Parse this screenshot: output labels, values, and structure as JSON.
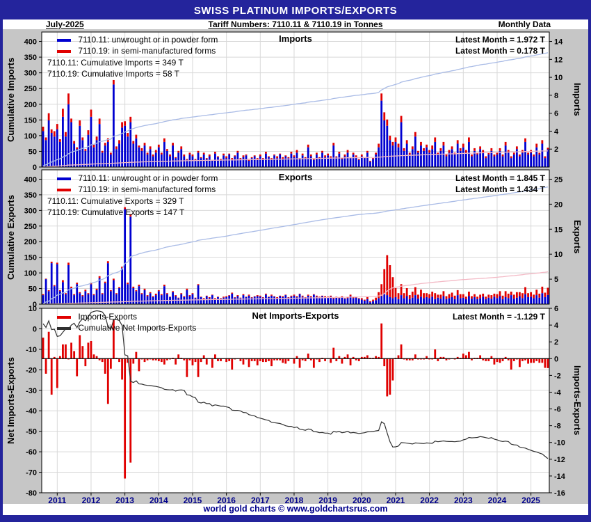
{
  "header": {
    "title": "SWISS PLATINUM IMPORTS/EXPORTS",
    "date_label": "July-2025",
    "tariff_label": "Tariff Numbers: 7110.11 & 7110.19 in Tonnes",
    "frequency_label": "Monthly Data"
  },
  "footer": {
    "credit": "world gold charts © www.goldchartsrus.com"
  },
  "colors": {
    "navy": "#24249c",
    "bar_blue": "#0000d0",
    "bar_red": "#e00000",
    "cum_blue": "#a9bbe6",
    "cum_pink": "#f3b9c5",
    "net_line": "#303030",
    "chart_bg": "#c6c6c6",
    "grid": "#d8d8d8",
    "x_label": "#00008b"
  },
  "x": {
    "start_year": 2010,
    "start_month": 8,
    "months": 180,
    "year_ticks": [
      2011,
      2012,
      2013,
      2014,
      2015,
      2016,
      2017,
      2018,
      2019,
      2020,
      2021,
      2022,
      2023,
      2024,
      2025
    ]
  },
  "chart_data": [
    {
      "type": "bar",
      "stacked": true,
      "title": "Imports",
      "left_axis": {
        "label": "Cumulative Imports",
        "min": 0,
        "max": 430,
        "ticks": [
          0,
          50,
          100,
          150,
          200,
          250,
          300,
          350,
          400
        ]
      },
      "right_axis": {
        "label": "Imports",
        "min": 0,
        "max": 15.05,
        "ticks": [
          2,
          4,
          6,
          8,
          10,
          12,
          14
        ]
      },
      "series": [
        {
          "name": "7110.11: unwrought or in powder form",
          "color": "#0000d0",
          "values": [
            4.0,
            3.0,
            5.2,
            3.8,
            3.4,
            4.2,
            2.8,
            5.6,
            3.4,
            7.0,
            5.0,
            2.6,
            2.0,
            4.6,
            3.0,
            1.8,
            3.6,
            5.6,
            2.2,
            3.0,
            4.8,
            1.6,
            2.4,
            2.8,
            1.4,
            9.2,
            2.0,
            2.6,
            4.4,
            4.6,
            3.4,
            5.0,
            2.6,
            3.2,
            2.2,
            1.8,
            2.4,
            1.4,
            2.0,
            1.2,
            1.6,
            2.2,
            1.4,
            2.8,
            1.8,
            1.2,
            2.4,
            1.0,
            1.6,
            2.0,
            1.2,
            0.8,
            1.4,
            1.2,
            0.8,
            1.6,
            1.0,
            1.4,
            0.9,
            1.2,
            0.7,
            1.5,
            1.1,
            0.8,
            1.3,
            1.0,
            1.4,
            0.8,
            1.2,
            1.6,
            0.9,
            1.1,
            1.3,
            0.7,
            1.0,
            1.2,
            0.8,
            1.2,
            0.9,
            1.5,
            1.1,
            0.8,
            1.3,
            1.0,
            1.4,
            0.9,
            1.2,
            1.0,
            1.5,
            1.1,
            1.6,
            0.9,
            1.3,
            1.0,
            2.2,
            1.2,
            0.8,
            1.4,
            1.0,
            1.6,
            1.1,
            1.3,
            1.0,
            2.4,
            1.1,
            1.5,
            0.9,
            1.2,
            1.6,
            1.0,
            1.4,
            1.1,
            0.8,
            1.2,
            1.0,
            1.6,
            0.6,
            0.9,
            1.4,
            2.2,
            7.4,
            5.2,
            4.6,
            3.0,
            2.4,
            2.8,
            2.2,
            5.0,
            1.8,
            2.6,
            1.4,
            2.0,
            3.4,
            1.6,
            2.4,
            1.8,
            2.2,
            1.6,
            2.0,
            2.8,
            1.4,
            1.8,
            2.4,
            1.2,
            1.6,
            2.0,
            1.4,
            2.6,
            1.8,
            2.2,
            1.6,
            2.8,
            1.2,
            1.8,
            1.4,
            2.0,
            1.6,
            1.0,
            1.4,
            1.8,
            1.2,
            1.4,
            1.8,
            1.2,
            2.4,
            1.6,
            1.0,
            1.4,
            2.0,
            1.2,
            1.6,
            2.8,
            1.4,
            1.6,
            1.2,
            2.2,
            1.4,
            2.6,
            1.0,
            1.972
          ]
        },
        {
          "name": "7110.19: in semi-manufactured forms",
          "color": "#e00000",
          "values": [
            0.5,
            0.3,
            0.8,
            0.4,
            0.6,
            0.6,
            0.3,
            0.9,
            0.5,
            1.2,
            0.4,
            0.3,
            0.2,
            0.6,
            0.3,
            0.2,
            0.5,
            0.8,
            0.3,
            0.4,
            0.6,
            0.2,
            0.3,
            0.4,
            0.2,
            0.5,
            0.3,
            0.4,
            0.6,
            0.5,
            0.4,
            0.6,
            0.3,
            0.4,
            0.2,
            0.3,
            0.3,
            0.2,
            0.3,
            0.2,
            0.3,
            0.3,
            0.2,
            0.4,
            0.2,
            0.2,
            0.3,
            0.1,
            0.2,
            0.3,
            0.2,
            0.1,
            0.2,
            0.2,
            0.1,
            0.2,
            0.1,
            0.2,
            0.1,
            0.2,
            0.1,
            0.2,
            0.1,
            0.1,
            0.2,
            0.2,
            0.1,
            0.2,
            0.1,
            0.2,
            0.1,
            0.2,
            0.1,
            0.2,
            0.1,
            0.1,
            0.2,
            0.2,
            0.1,
            0.2,
            0.1,
            0.2,
            0.1,
            0.2,
            0.1,
            0.2,
            0.1,
            0.1,
            0.2,
            0.2,
            0.3,
            0.1,
            0.2,
            0.1,
            0.3,
            0.2,
            0.1,
            0.2,
            0.1,
            0.2,
            0.2,
            0.2,
            0.2,
            0.3,
            0.1,
            0.2,
            0.1,
            0.2,
            0.3,
            0.1,
            0.2,
            0.2,
            0.1,
            0.2,
            0.1,
            0.2,
            0.1,
            0.1,
            0.2,
            0.4,
            0.8,
            0.9,
            0.7,
            0.5,
            0.4,
            0.5,
            0.4,
            0.7,
            0.3,
            0.4,
            0.2,
            0.3,
            0.5,
            0.2,
            0.4,
            0.3,
            0.3,
            0.3,
            0.4,
            0.5,
            0.2,
            0.3,
            0.4,
            0.2,
            0.3,
            0.3,
            0.2,
            0.4,
            0.3,
            0.4,
            0.3,
            0.5,
            0.2,
            0.3,
            0.2,
            0.3,
            0.3,
            0.2,
            0.2,
            0.3,
            0.2,
            0.2,
            0.3,
            0.2,
            0.4,
            0.3,
            0.2,
            0.2,
            0.3,
            0.2,
            0.3,
            0.4,
            0.2,
            0.3,
            0.2,
            0.4,
            0.2,
            0.4,
            0.2,
            0.178
          ]
        }
      ],
      "cum_lines": [
        {
          "label": "Cumulative 7110.11 Imports",
          "color": "#a9bbe6",
          "width": 1.3
        },
        {
          "label": "Cumulative 7110.19 Imports",
          "color": "#f3b9c5",
          "width": 1.3
        }
      ],
      "annotations": {
        "cum1": "7110.11: Cumulative Imports = 349 T",
        "cum2": "7110.19: Cumulative Imports = 58 T",
        "latest1": "Latest Month = 1.972 T",
        "latest2": "Latest Month = 0.178 T"
      }
    },
    {
      "type": "bar",
      "stacked": true,
      "title": "Exports",
      "left_axis": {
        "label": "Cumulative Exports",
        "min": 0,
        "max": 430,
        "ticks": [
          0,
          50,
          100,
          150,
          200,
          250,
          300,
          350,
          400
        ]
      },
      "right_axis": {
        "label": "Exports",
        "min": 0,
        "max": 26.875,
        "ticks": [
          5,
          10,
          15,
          20,
          25
        ]
      },
      "series": [
        {
          "name": "7110.11: unwrought or in powder form",
          "color": "#0000d0",
          "values": [
            1.8,
            5.0,
            2.6,
            8.2,
            3.6,
            8.0,
            2.6,
            4.4,
            2.0,
            7.8,
            3.2,
            1.8,
            4.0,
            2.2,
            1.6,
            2.6,
            2.0,
            4.0,
            1.8,
            2.8,
            5.2,
            2.0,
            4.2,
            8.2,
            2.6,
            4.8,
            2.0,
            3.2,
            7.2,
            19.0,
            4.0,
            17.5,
            3.2,
            2.6,
            3.6,
            2.0,
            2.8,
            1.6,
            2.2,
            1.4,
            1.8,
            2.6,
            1.8,
            3.6,
            2.0,
            1.4,
            2.4,
            1.6,
            1.2,
            2.0,
            1.4,
            2.8,
            1.6,
            2.0,
            1.2,
            3.8,
            1.4,
            1.0,
            1.6,
            1.2,
            1.8,
            1.0,
            1.4,
            1.1,
            1.3,
            1.4,
            1.7,
            2.1,
            1.3,
            1.6,
            1.2,
            1.8,
            1.4,
            1.7,
            1.3,
            1.5,
            1.6,
            1.5,
            1.3,
            1.9,
            1.4,
            1.7,
            1.5,
            1.2,
            1.6,
            1.4,
            1.8,
            1.3,
            1.5,
            1.7,
            1.4,
            2.0,
            1.5,
            1.3,
            1.7,
            1.4,
            1.9,
            1.5,
            1.3,
            1.6,
            1.4,
            1.3,
            1.5,
            1.1,
            1.3,
            1.2,
            1.4,
            1.1,
            1.2,
            1.6,
            1.2,
            1.3,
            1.1,
            0.9,
            0.7,
            1.0,
            0.4,
            0.6,
            0.8,
            1.2,
            1.6,
            2.0,
            1.8,
            1.4,
            1.2,
            1.4,
            1.0,
            1.8,
            1.2,
            1.6,
            1.0,
            1.3,
            1.8,
            1.1,
            1.5,
            1.2,
            1.4,
            1.2,
            1.5,
            1.0,
            1.3,
            1.1,
            1.6,
            1.0,
            1.2,
            1.4,
            1.0,
            1.8,
            1.2,
            1.3,
            1.0,
            1.6,
            1.1,
            1.4,
            1.0,
            1.2,
            1.5,
            1.0,
            1.3,
            1.1,
            1.5,
            1.2,
            1.6,
            1.0,
            1.4,
            1.2,
            1.8,
            1.1,
            1.3,
            1.6,
            1.2,
            2.0,
            1.4,
            1.5,
            1.2,
            1.8,
            1.3,
            2.2,
            1.4,
            1.845
          ]
        },
        {
          "name": "7110.19: in semi-manufactured forms",
          "color": "#e00000",
          "values": [
            0.2,
            0.1,
            0.2,
            0.3,
            0.2,
            0.3,
            0.2,
            0.4,
            0.2,
            0.5,
            0.3,
            0.2,
            0.3,
            0.2,
            0.2,
            0.3,
            0.2,
            0.3,
            0.2,
            0.3,
            0.4,
            0.2,
            0.3,
            0.4,
            0.2,
            0.3,
            0.2,
            0.2,
            0.3,
            0.4,
            0.3,
            0.5,
            0.3,
            0.2,
            0.3,
            0.2,
            0.3,
            0.2,
            0.2,
            0.2,
            0.3,
            0.2,
            0.2,
            0.3,
            0.2,
            0.1,
            0.2,
            0.2,
            0.1,
            0.2,
            0.2,
            0.3,
            0.2,
            0.2,
            0.1,
            0.2,
            0.1,
            0.2,
            0.1,
            0.2,
            0.1,
            0.2,
            0.1,
            0.1,
            0.2,
            0.2,
            0.1,
            0.2,
            0.1,
            0.2,
            0.1,
            0.2,
            0.1,
            0.2,
            0.1,
            0.1,
            0.2,
            0.2,
            0.1,
            0.2,
            0.1,
            0.2,
            0.1,
            0.2,
            0.1,
            0.2,
            0.1,
            0.1,
            0.2,
            0.2,
            0.2,
            0.1,
            0.2,
            0.1,
            0.2,
            0.2,
            0.1,
            0.2,
            0.2,
            0.1,
            0.2,
            0.2,
            0.2,
            0.3,
            0.2,
            0.2,
            0.2,
            0.1,
            0.2,
            0.3,
            0.2,
            0.2,
            0.1,
            0.3,
            0.2,
            0.4,
            0.2,
            0.3,
            0.5,
            1.2,
            2.4,
            5.0,
            8.0,
            6.4,
            4.2,
            1.8,
            1.2,
            2.2,
            1.0,
            1.6,
            0.8,
            1.2,
            1.6,
            0.8,
            1.4,
            1.0,
            0.8,
            0.8,
            1.0,
            1.2,
            0.6,
            0.8,
            1.0,
            0.6,
            0.8,
            0.9,
            0.7,
            1.0,
            0.8,
            0.7,
            0.5,
            0.9,
            0.5,
            0.6,
            0.5,
            0.7,
            0.6,
            0.5,
            0.6,
            0.7,
            0.6,
            0.8,
            1.0,
            0.7,
            1.2,
            0.9,
            0.7,
            0.8,
            1.1,
            0.8,
            1.0,
            1.4,
            0.8,
            0.9,
            0.7,
            1.1,
            0.8,
            1.3,
            0.9,
            1.434
          ]
        }
      ],
      "cum_lines": [
        {
          "label": "Cumulative 7110.11 Exports",
          "color": "#a9bbe6",
          "width": 1.3
        },
        {
          "label": "Cumulative 7110.19 Exports",
          "color": "#f3b9c5",
          "width": 1.3
        }
      ],
      "annotations": {
        "cum1": "7110.11: Cumulative Exports = 329 T",
        "cum2": "7110.19: Cumulative Exports = 147 T",
        "latest1": "Latest Month = 1.845 T",
        "latest2": "Latest Month = 1.434 T"
      }
    },
    {
      "type": "bar",
      "stacked": false,
      "title": "Net Imports-Exports",
      "left_axis": {
        "label": "Net Imports-Exports",
        "min": -80,
        "max": 10,
        "ticks": [
          10,
          0,
          -10,
          -20,
          -30,
          -40,
          -50,
          -60,
          -70,
          -80
        ]
      },
      "right_axis": {
        "label": "Imports-Exports",
        "min": -16,
        "max": 6,
        "ticks": [
          6,
          4,
          2,
          0,
          -2,
          -4,
          -6,
          -8,
          -10,
          -12,
          -14,
          -16
        ]
      },
      "series": [
        {
          "name": "Imports-Exports",
          "color": "#e00000",
          "values": [],
          "derived": "(imports 7110.11 + 7110.19) - (exports 7110.11 + 7110.19), computed at render time"
        }
      ],
      "cum_lines": [
        {
          "label": "Cumulative Net Imports-Exports",
          "color": "#303030",
          "width": 1.2
        }
      ],
      "annotations": {
        "latest1": "Latest Month = -1.129 T"
      }
    }
  ]
}
